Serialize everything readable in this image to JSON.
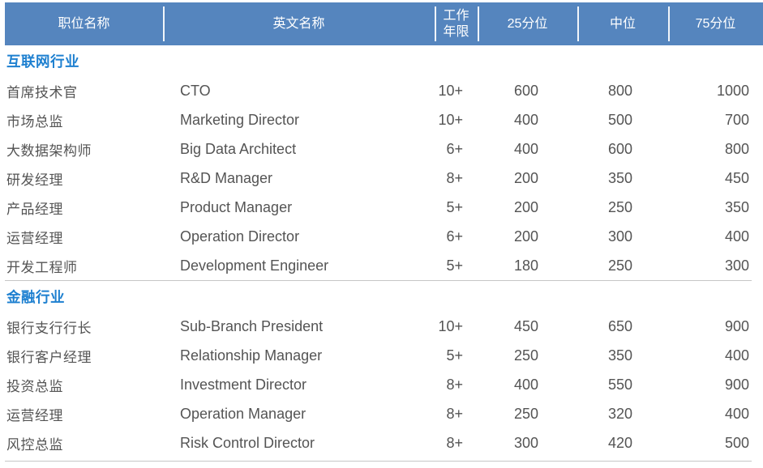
{
  "colors": {
    "header_bg": "#5585BE",
    "header_text": "#FFFFFF",
    "section_title": "#1E80D0",
    "body_text": "#545454",
    "divider": "#C6C6C6"
  },
  "table": {
    "columns": [
      {
        "label": "职位名称"
      },
      {
        "label": "英文名称"
      },
      {
        "label": "工作年限"
      },
      {
        "label": "25分位"
      },
      {
        "label": "中位"
      },
      {
        "label": "75分位"
      }
    ],
    "sections": [
      {
        "title": "互联网行业",
        "rows": [
          {
            "position": "首席技术官",
            "english": "CTO",
            "years": "10+",
            "p25": "600",
            "median": "800",
            "p75": "1000"
          },
          {
            "position": "市场总监",
            "english": "Marketing Director",
            "years": "10+",
            "p25": "400",
            "median": "500",
            "p75": "700"
          },
          {
            "position": "大数据架构师",
            "english": "Big Data Architect",
            "years": "6+",
            "p25": "400",
            "median": "600",
            "p75": "800"
          },
          {
            "position": "研发经理",
            "english": "R&D Manager",
            "years": "8+",
            "p25": "200",
            "median": "350",
            "p75": "450"
          },
          {
            "position": "产品经理",
            "english": "Product Manager",
            "years": "5+",
            "p25": "200",
            "median": "250",
            "p75": "350"
          },
          {
            "position": "运营经理",
            "english": "Operation Director",
            "years": "6+",
            "p25": "200",
            "median": "300",
            "p75": "400"
          },
          {
            "position": "开发工程师",
            "english": "Development Engineer",
            "years": "5+",
            "p25": "180",
            "median": "250",
            "p75": "300"
          }
        ]
      },
      {
        "title": "金融行业",
        "rows": [
          {
            "position": "银行支行行长",
            "english": "Sub-Branch President",
            "years": "10+",
            "p25": "450",
            "median": "650",
            "p75": "900"
          },
          {
            "position": "银行客户经理",
            "english": "Relationship Manager",
            "years": "5+",
            "p25": "250",
            "median": "350",
            "p75": "400"
          },
          {
            "position": "投资总监",
            "english": "Investment Director",
            "years": "8+",
            "p25": "400",
            "median": "550",
            "p75": "900"
          },
          {
            "position": "运营经理",
            "english": "Operation Manager",
            "years": "8+",
            "p25": "250",
            "median": "320",
            "p75": "400"
          },
          {
            "position": "风控总监",
            "english": "Risk Control Director",
            "years": "8+",
            "p25": "300",
            "median": "420",
            "p75": "500"
          }
        ]
      }
    ]
  },
  "chart_data": {
    "type": "table",
    "title": "",
    "columns": [
      "职位名称",
      "英文名称",
      "工作年限",
      "25分位",
      "中位",
      "75分位"
    ],
    "groups": [
      {
        "group": "互联网行业",
        "rows": [
          [
            "首席技术官",
            "CTO",
            "10+",
            600,
            800,
            1000
          ],
          [
            "市场总监",
            "Marketing Director",
            "10+",
            400,
            500,
            700
          ],
          [
            "大数据架构师",
            "Big Data Architect",
            "6+",
            400,
            600,
            800
          ],
          [
            "研发经理",
            "R&D Manager",
            "8+",
            200,
            350,
            450
          ],
          [
            "产品经理",
            "Product Manager",
            "5+",
            200,
            250,
            350
          ],
          [
            "运营经理",
            "Operation Director",
            "6+",
            200,
            300,
            400
          ],
          [
            "开发工程师",
            "Development Engineer",
            "5+",
            180,
            250,
            300
          ]
        ]
      },
      {
        "group": "金融行业",
        "rows": [
          [
            "银行支行行长",
            "Sub-Branch President",
            "10+",
            450,
            650,
            900
          ],
          [
            "银行客户经理",
            "Relationship Manager",
            "5+",
            250,
            350,
            400
          ],
          [
            "投资总监",
            "Investment Director",
            "8+",
            400,
            550,
            900
          ],
          [
            "运营经理",
            "Operation Manager",
            "8+",
            250,
            320,
            400
          ],
          [
            "风控总监",
            "Risk Control Director",
            "8+",
            300,
            420,
            500
          ]
        ]
      }
    ]
  }
}
